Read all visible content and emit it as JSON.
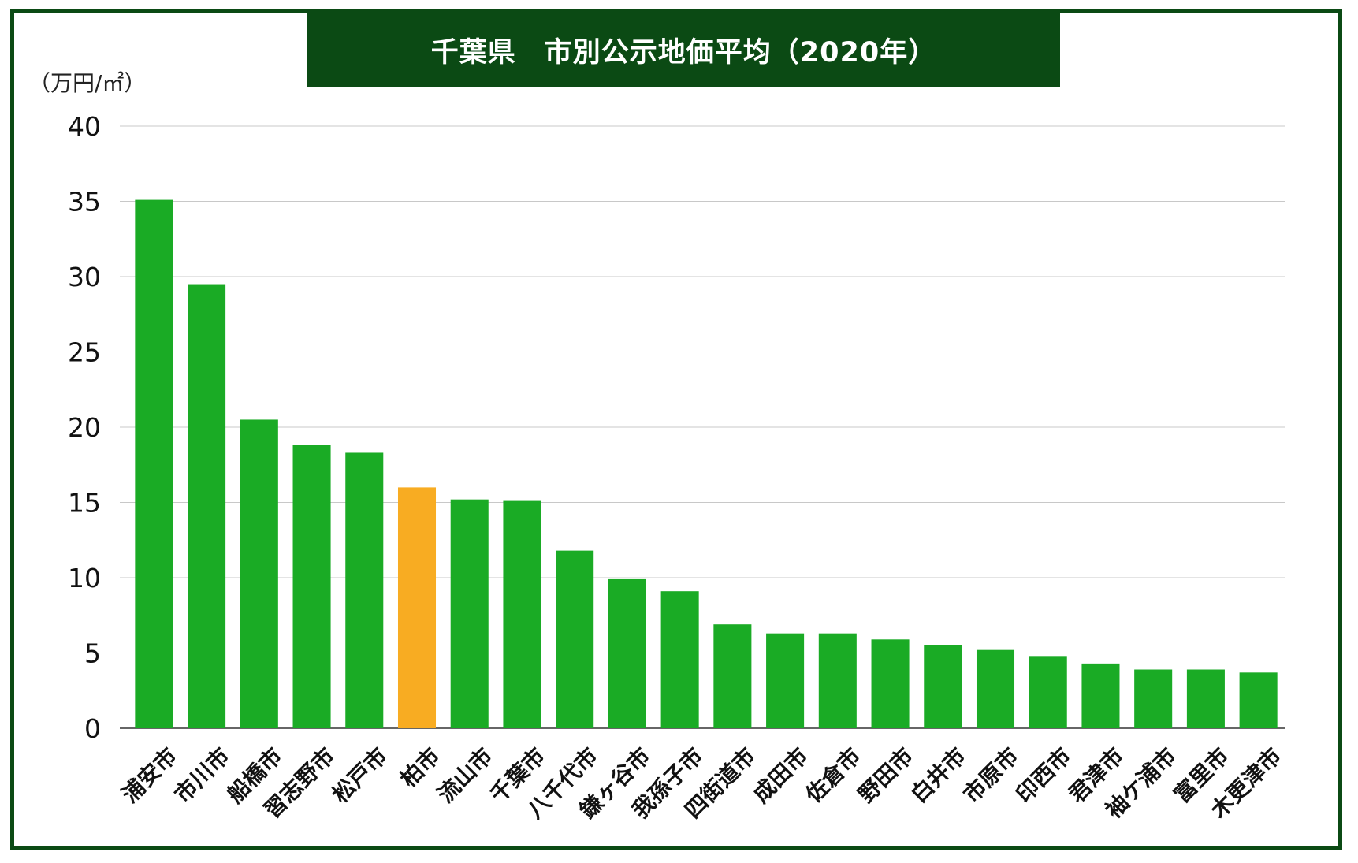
{
  "title": "千葉県　市別公示地価平均（2020年）",
  "unit_label": "（万円/㎡）",
  "colors": {
    "frame": "#0b4a14",
    "bar": "#1aab25",
    "highlight": "#f8ac22",
    "grid": "#c8c8c8",
    "axis": "#333333"
  },
  "chart_data": {
    "type": "bar",
    "title": "千葉県　市別公示地価平均（2020年）",
    "ylabel": "（万円/㎡）",
    "xlabel": "",
    "ylim": [
      0,
      40
    ],
    "yticks": [
      0,
      5,
      10,
      15,
      20,
      25,
      30,
      35,
      40
    ],
    "grid": true,
    "highlight_category": "柏市",
    "categories": [
      "浦安市",
      "市川市",
      "船橋市",
      "習志野市",
      "松戸市",
      "柏市",
      "流山市",
      "千葉市",
      "八千代市",
      "鎌ヶ谷市",
      "我孫子市",
      "四街道市",
      "成田市",
      "佐倉市",
      "野田市",
      "白井市",
      "市原市",
      "印西市",
      "君津市",
      "袖ケ浦市",
      "富里市",
      "木更津市"
    ],
    "values": [
      35.1,
      29.5,
      20.5,
      18.8,
      18.3,
      16.0,
      15.2,
      15.1,
      11.8,
      9.9,
      9.1,
      6.9,
      6.3,
      6.3,
      5.9,
      5.5,
      5.2,
      4.8,
      4.3,
      3.9,
      3.9,
      3.7
    ]
  }
}
